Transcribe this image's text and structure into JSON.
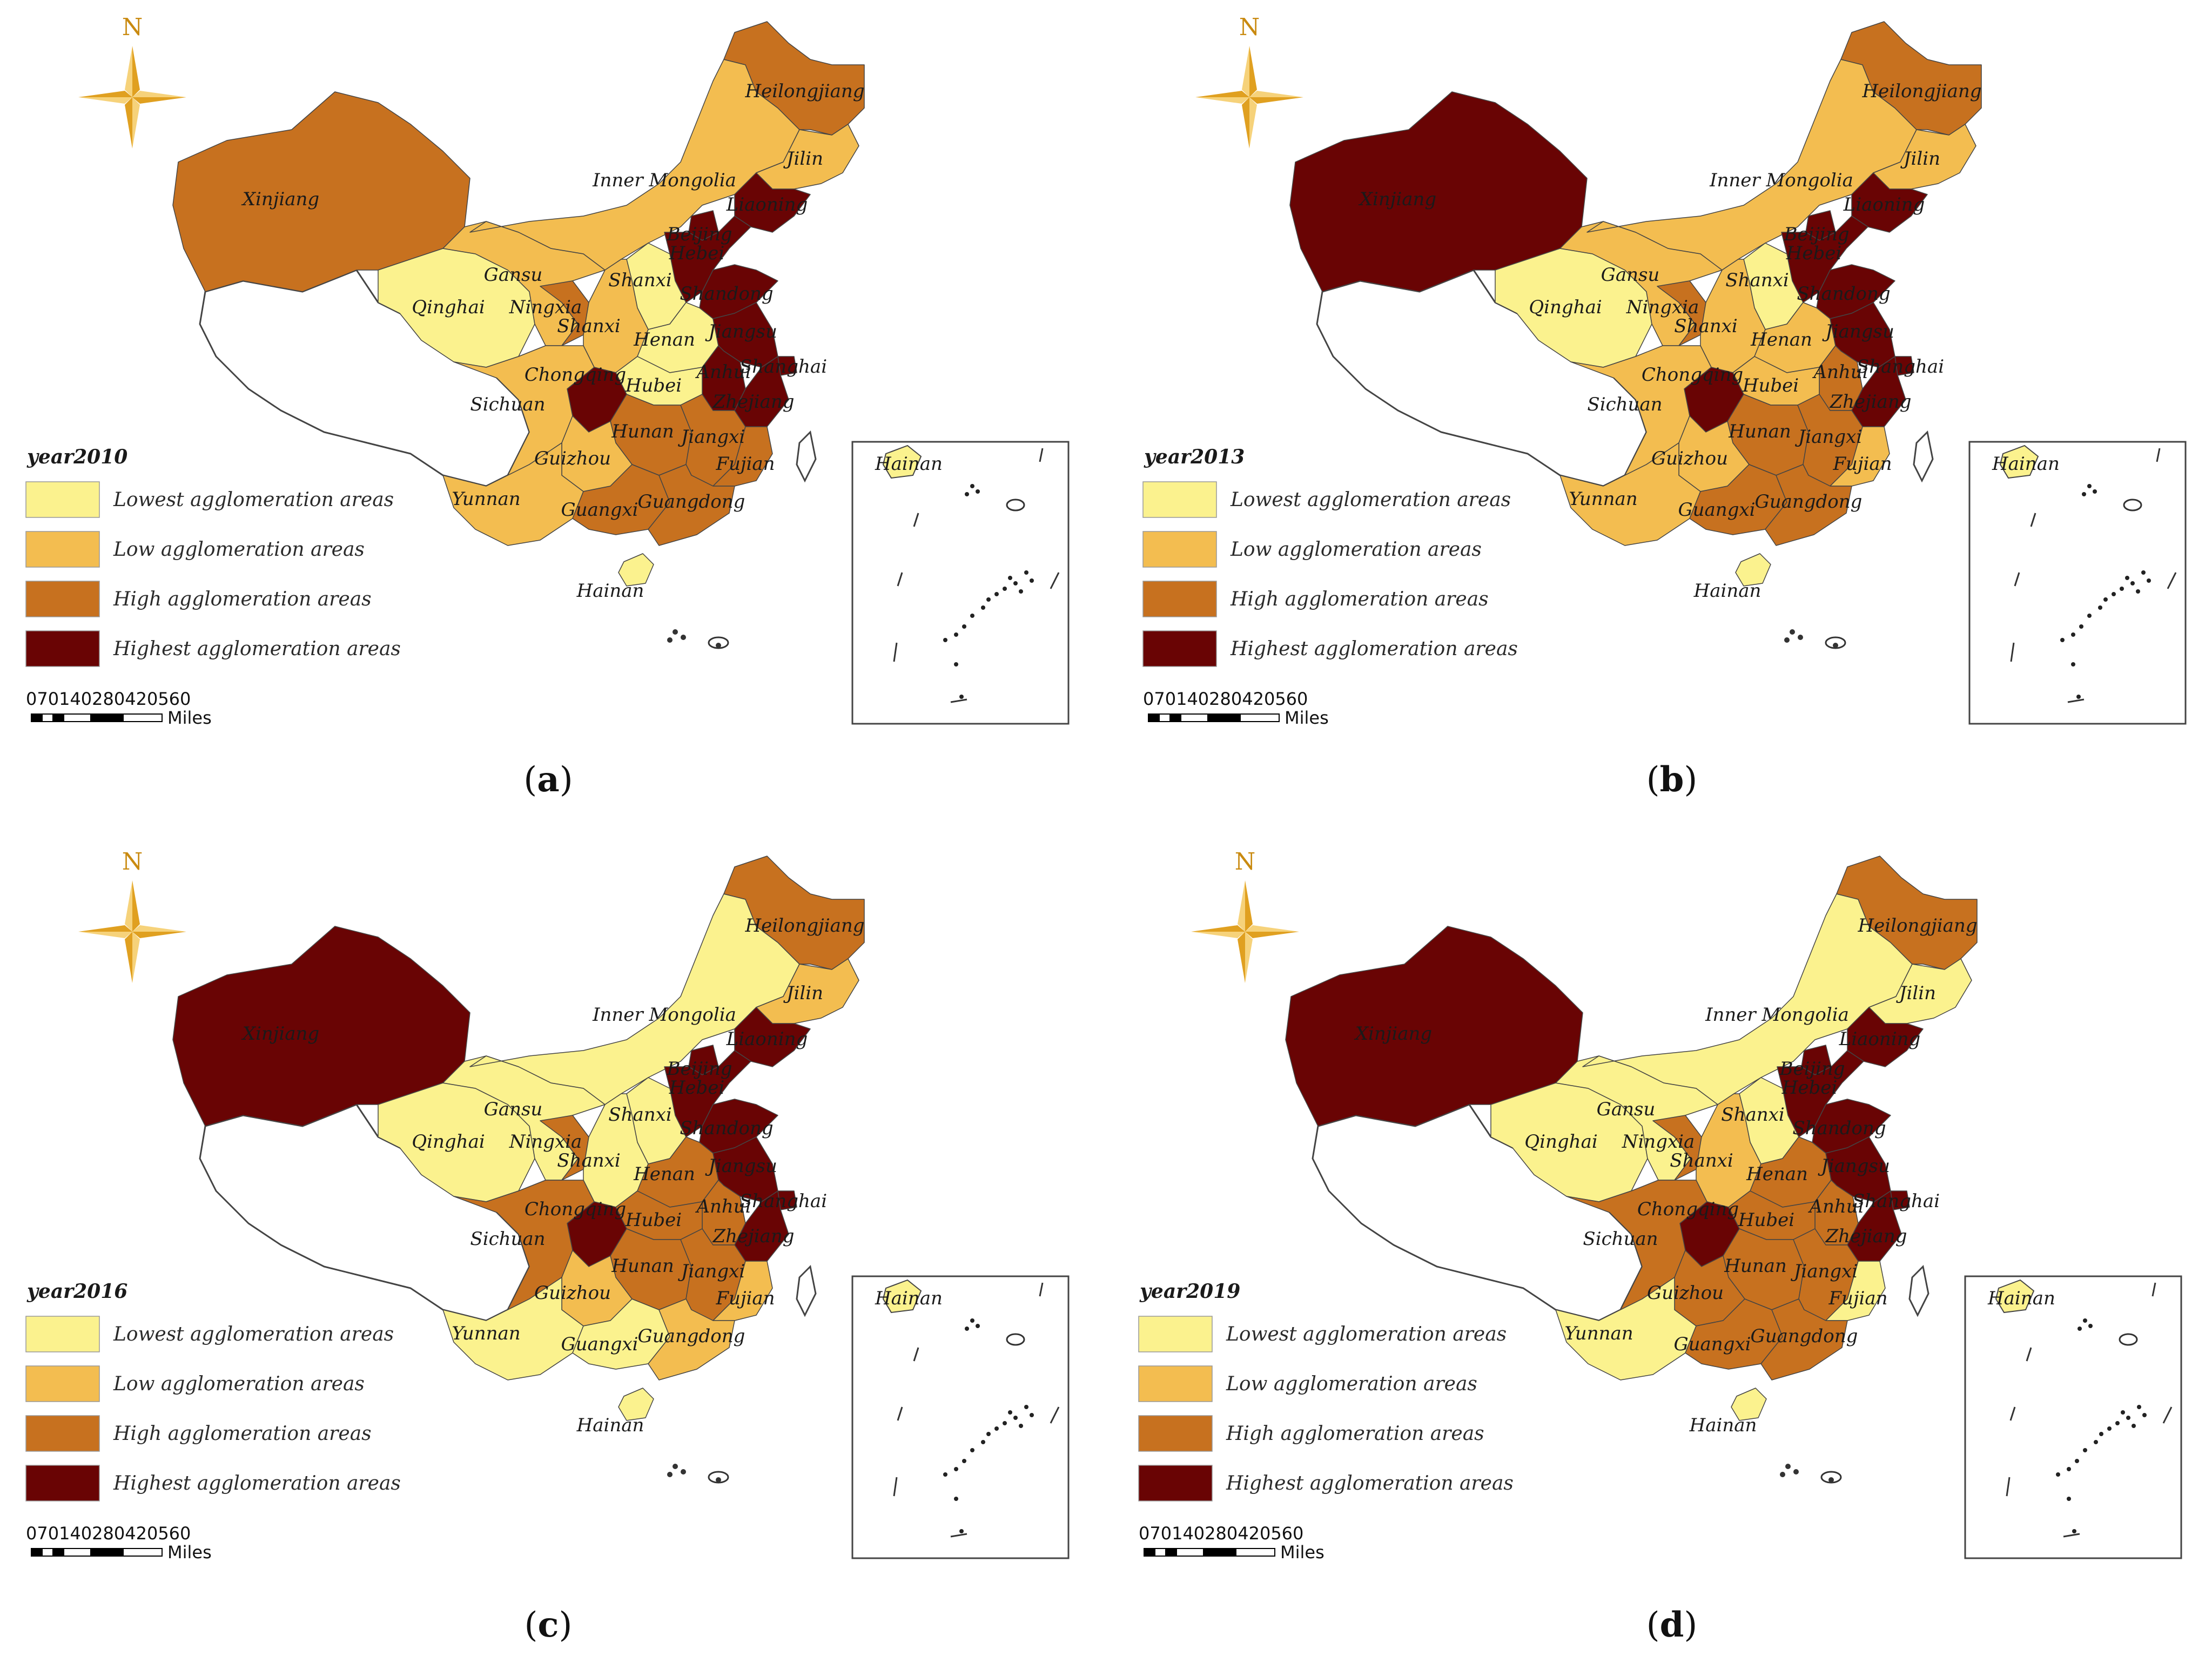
{
  "colors": {
    "lowest": "#fbf28e",
    "low": "#f3bd50",
    "high": "#c7711f",
    "highest": "#690404",
    "compass": "#e0a020",
    "outline": "#444444"
  },
  "legend_labels": {
    "lowest": "Lowest agglomeration areas",
    "low": "Low agglomeration areas",
    "high": "High agglomeration areas",
    "highest": "Highest agglomeration areas"
  },
  "north_label": "N",
  "scale_ticks": "070140280420560",
  "scale_unit": "Miles",
  "panels": [
    {
      "caption_letter": "a",
      "year_label": "year2010",
      "levels": {
        "Xinjiang": "high",
        "Qinghai": "lowest",
        "Gansu": "low",
        "Ningxia": "high",
        "InnerMongolia": "low",
        "Heilongjiang": "high",
        "Jilin": "low",
        "Liaoning": "highest",
        "Beijing": "highest",
        "Hebei": "highest",
        "Shandong": "highest",
        "Shanxi": "lowest",
        "Shaanxi": "low",
        "Henan": "lowest",
        "Jiangsu": "highest",
        "Anhui": "highest",
        "Shanghai": "highest",
        "Zhejiang": "highest",
        "Hubei": "lowest",
        "Chongqing": "highest",
        "Sichuan": "low",
        "Hunan": "high",
        "Jiangxi": "high",
        "Fujian": "high",
        "Guizhou": "low",
        "Yunnan": "low",
        "Guangxi": "high",
        "Guangdong": "high",
        "Hainan": "lowest",
        "Tibet": "none"
      }
    },
    {
      "caption_letter": "b",
      "year_label": "year2013",
      "levels": {
        "Xinjiang": "highest",
        "Qinghai": "lowest",
        "Gansu": "low",
        "Ningxia": "high",
        "InnerMongolia": "low",
        "Heilongjiang": "high",
        "Jilin": "low",
        "Liaoning": "highest",
        "Beijing": "highest",
        "Hebei": "highest",
        "Shandong": "highest",
        "Shanxi": "lowest",
        "Shaanxi": "low",
        "Henan": "low",
        "Jiangsu": "highest",
        "Anhui": "high",
        "Shanghai": "highest",
        "Zhejiang": "highest",
        "Hubei": "low",
        "Chongqing": "highest",
        "Sichuan": "low",
        "Hunan": "high",
        "Jiangxi": "high",
        "Fujian": "low",
        "Guizhou": "low",
        "Yunnan": "low",
        "Guangxi": "high",
        "Guangdong": "high",
        "Hainan": "lowest",
        "Tibet": "none"
      }
    },
    {
      "caption_letter": "c",
      "year_label": "year2016",
      "levels": {
        "Xinjiang": "highest",
        "Qinghai": "lowest",
        "Gansu": "lowest",
        "Ningxia": "high",
        "InnerMongolia": "lowest",
        "Heilongjiang": "high",
        "Jilin": "low",
        "Liaoning": "highest",
        "Beijing": "highest",
        "Hebei": "highest",
        "Shandong": "highest",
        "Shanxi": "lowest",
        "Shaanxi": "lowest",
        "Henan": "high",
        "Jiangsu": "highest",
        "Anhui": "high",
        "Shanghai": "highest",
        "Zhejiang": "highest",
        "Hubei": "high",
        "Chongqing": "highest",
        "Sichuan": "high",
        "Hunan": "high",
        "Jiangxi": "high",
        "Fujian": "low",
        "Guizhou": "low",
        "Yunnan": "lowest",
        "Guangxi": "lowest",
        "Guangdong": "low",
        "Hainan": "lowest",
        "Tibet": "none"
      }
    },
    {
      "caption_letter": "d",
      "year_label": "year2019",
      "levels": {
        "Xinjiang": "highest",
        "Qinghai": "lowest",
        "Gansu": "lowest",
        "Ningxia": "high",
        "InnerMongolia": "lowest",
        "Heilongjiang": "high",
        "Jilin": "lowest",
        "Liaoning": "highest",
        "Beijing": "highest",
        "Hebei": "highest",
        "Shandong": "highest",
        "Shanxi": "lowest",
        "Shaanxi": "low",
        "Henan": "high",
        "Jiangsu": "highest",
        "Anhui": "high",
        "Shanghai": "highest",
        "Zhejiang": "highest",
        "Hubei": "high",
        "Chongqing": "highest",
        "Sichuan": "high",
        "Hunan": "high",
        "Jiangxi": "high",
        "Fujian": "lowest",
        "Guizhou": "high",
        "Yunnan": "lowest",
        "Guangxi": "high",
        "Guangdong": "high",
        "Hainan": "lowest",
        "Tibet": "none"
      }
    }
  ],
  "province_labels": {
    "Xinjiang": "Xinjiang",
    "Qinghai": "Qinghai",
    "Gansu": "Gansu",
    "Ningxia": "Ningxia",
    "InnerMongolia": "Inner Mongolia",
    "Heilongjiang": "Heilongjiang",
    "Jilin": "Jilin",
    "Liaoning": "Liaoning",
    "Beijing": "Beijing",
    "Hebei": "Hebei",
    "Shandong": "Shandong",
    "Shanxi": "Shanxi",
    "Shaanxi": "Shanxi",
    "Henan": "Henan",
    "Jiangsu": "Jiangsu",
    "Anhui": "Anhui",
    "Shanghai": "Shanghai",
    "Zhejiang": "Zhejiang",
    "Hubei": "Hubei",
    "Chongqing": "Chongqing",
    "Sichuan": "Sichuan",
    "Hunan": "Hunan",
    "Jiangxi": "Jiangxi",
    "Fujian": "Fujian",
    "Guizhou": "Guizhou",
    "Yunnan": "Yunnan",
    "Guangxi": "Guangxi",
    "Guangdong": "Guangdong",
    "Hainan": "Hainan"
  },
  "inset_label": "Hainan"
}
